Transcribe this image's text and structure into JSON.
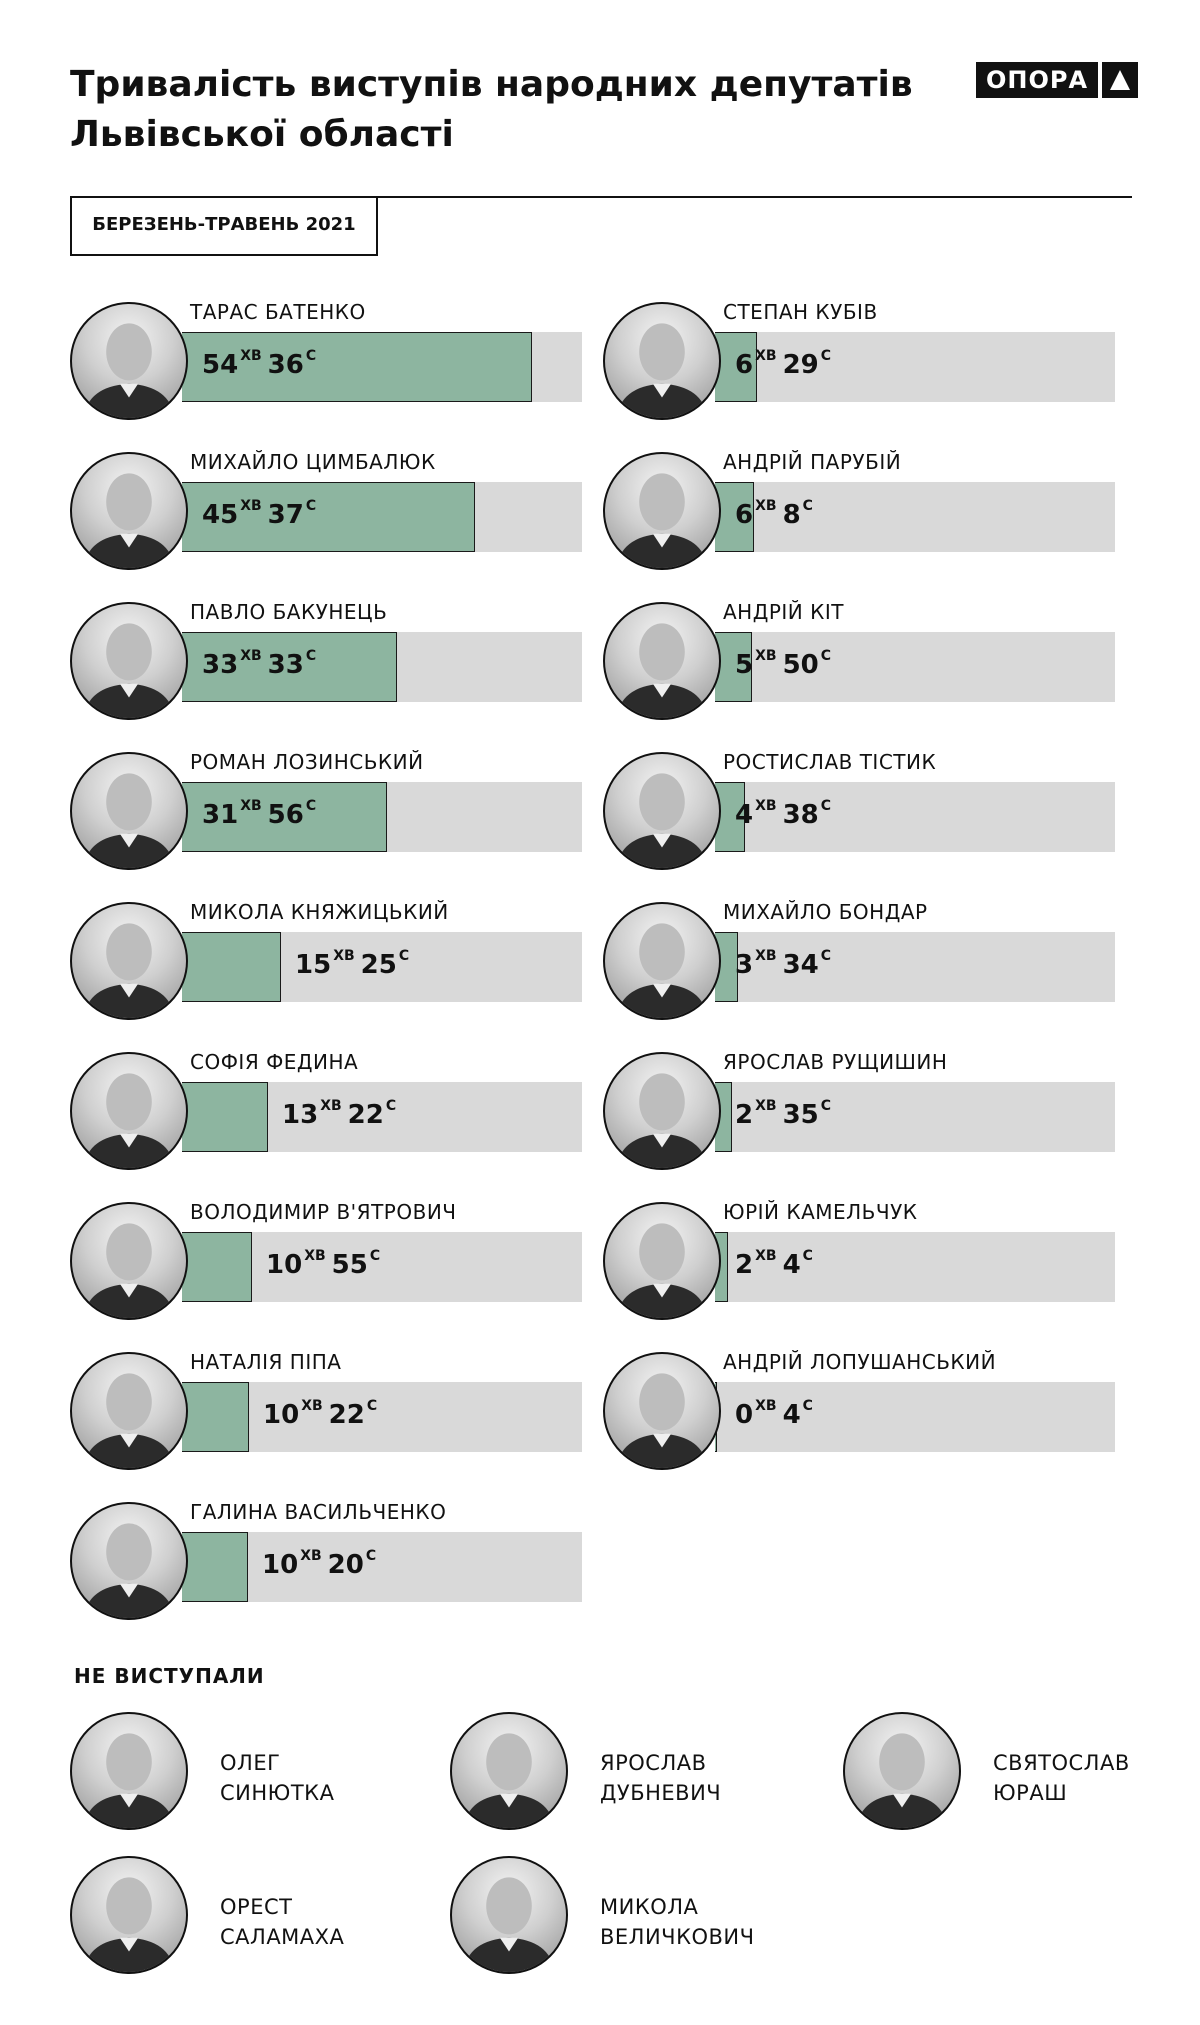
{
  "title": {
    "line1": "Тривалість виступів народних депутатів",
    "line2": "Львівської області"
  },
  "logo": "ОПОРА",
  "logo_icon": "triangle-icon",
  "period": "БЕРЕЗЕНЬ-ТРАВЕНЬ 2021",
  "units": {
    "minutes": "ХВ",
    "seconds": "С"
  },
  "colors": {
    "fill": "#8db5a0",
    "track": "#d9d9d9",
    "text": "#111111"
  },
  "chart_data": {
    "type": "bar",
    "orientation": "horizontal",
    "value_unit": "seconds",
    "max_reference_seconds": 3740,
    "series": [
      {
        "name": "",
        "values": [
          3276,
          2737,
          2013,
          1916,
          925,
          802,
          655,
          622,
          620,
          389,
          368,
          350,
          278,
          214,
          155,
          124,
          4
        ]
      }
    ],
    "categories": [
      "ТАРАС БАТЕНКО",
      "МИХАЙЛО ЦИМБАЛЮК",
      "ПАВЛО БАКУНЕЦЬ",
      "РОМАН ЛОЗИНСЬКИЙ",
      "МИКОЛА КНЯЖИЦЬКИЙ",
      "СОФІЯ ФЕДИНА",
      "ВОЛОДИМИР В'ЯТРОВИЧ",
      "НАТАЛІЯ ПІПА",
      "ГАЛИНА ВАСИЛЬЧЕНКО",
      "СТЕПАН КУБІВ",
      "АНДРІЙ ПАРУБІЙ",
      "АНДРІЙ КІТ",
      "РОСТИСЛАВ ТІСТИК",
      "МИХАЙЛО БОНДАР",
      "ЯРОСЛАВ РУЩИШИН",
      "ЮРІЙ КАМЕЛЬЧУК",
      "АНДРІЙ ЛОПУШАНСЬКИЙ"
    ]
  },
  "speakers": [
    {
      "name": "ТАРАС БАТЕНКО",
      "min": "54",
      "sec": "36",
      "seconds": 3276
    },
    {
      "name": "МИХАЙЛО ЦИМБАЛЮК",
      "min": "45",
      "sec": "37",
      "seconds": 2737
    },
    {
      "name": "ПАВЛО БАКУНЕЦЬ",
      "min": "33",
      "sec": "33",
      "seconds": 2013
    },
    {
      "name": "РОМАН ЛОЗИНСЬКИЙ",
      "min": "31",
      "sec": "56",
      "seconds": 1916
    },
    {
      "name": "МИКОЛА КНЯЖИЦЬКИЙ",
      "min": "15",
      "sec": "25",
      "seconds": 925
    },
    {
      "name": "СОФІЯ ФЕДИНА",
      "min": "13",
      "sec": "22",
      "seconds": 802
    },
    {
      "name": "ВОЛОДИМИР В'ЯТРОВИЧ",
      "min": "10",
      "sec": "55",
      "seconds": 655
    },
    {
      "name": "НАТАЛІЯ ПІПА",
      "min": "10",
      "sec": "22",
      "seconds": 622
    },
    {
      "name": "ГАЛИНА ВАСИЛЬЧЕНКО",
      "min": "10",
      "sec": "20",
      "seconds": 620
    },
    {
      "name": "СТЕПАН КУБІВ",
      "min": "6",
      "sec": "29",
      "seconds": 389
    },
    {
      "name": "АНДРІЙ ПАРУБІЙ",
      "min": "6",
      "sec": "8",
      "seconds": 368
    },
    {
      "name": "АНДРІЙ КІТ",
      "min": "5",
      "sec": "50",
      "seconds": 350
    },
    {
      "name": "РОСТИСЛАВ ТІСТИК",
      "min": "4",
      "sec": "38",
      "seconds": 278
    },
    {
      "name": "МИХАЙЛО БОНДАР",
      "min": "3",
      "sec": "34",
      "seconds": 214
    },
    {
      "name": "ЯРОСЛАВ РУЩИШИН",
      "min": "2",
      "sec": "35",
      "seconds": 155
    },
    {
      "name": "ЮРІЙ КАМЕЛЬЧУК",
      "min": "2",
      "sec": "4",
      "seconds": 124
    },
    {
      "name": "АНДРІЙ ЛОПУШАНСЬКИЙ",
      "min": "0",
      "sec": "4",
      "seconds": 4
    }
  ],
  "not_spoken": {
    "heading": "НЕ ВИСТУПАЛИ",
    "people": [
      {
        "first": "ОЛЕГ",
        "last": "СИНЮТКА"
      },
      {
        "first": "ЯРОСЛАВ",
        "last": "ДУБНЕВИЧ"
      },
      {
        "first": "СВЯТОСЛАВ",
        "last": "ЮРАШ"
      },
      {
        "first": "ОРЕСТ",
        "last": "САЛАМАХА"
      },
      {
        "first": "МИКОЛА",
        "last": "ВЕЛИЧКОВИЧ"
      }
    ]
  }
}
